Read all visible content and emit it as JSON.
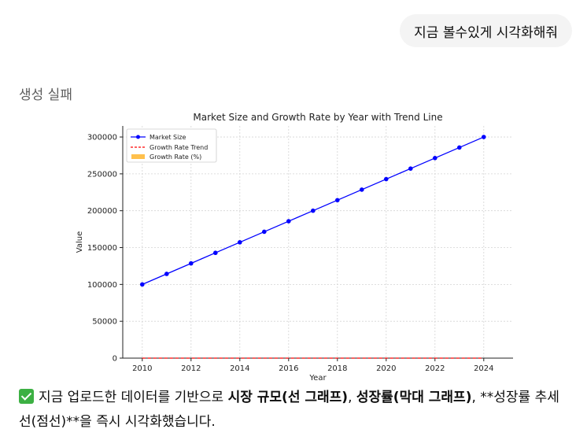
{
  "chat": {
    "user_message": "지금 볼수있게 시각화해줘",
    "generation_status": "생성 실패",
    "response": {
      "intro": "지금 업로드한 데이터를 기반으로 ",
      "bold1": "시장 규모(선 그래프)",
      "sep1": ", ",
      "bold2": "성장률(막대 그래프)",
      "rest": ", **성장률 추세선(점선)**을 즉시 시각화했습니다."
    }
  },
  "colors": {
    "market_size": "#0000ff",
    "growth_trend": "#ff0000",
    "growth_rate": "#ffa500"
  },
  "chart_data": {
    "type": "line",
    "title": "Market Size and Growth Rate by Year with Trend Line",
    "xlabel": "Year",
    "ylabel": "Value",
    "x": [
      2010,
      2011,
      2012,
      2013,
      2014,
      2015,
      2016,
      2017,
      2018,
      2019,
      2020,
      2021,
      2022,
      2023,
      2024
    ],
    "xticks": [
      2010,
      2012,
      2014,
      2016,
      2018,
      2020,
      2022,
      2024
    ],
    "xlim": [
      2009.2,
      2025.2
    ],
    "ylim": [
      0,
      315000
    ],
    "yticks": [
      0,
      50000,
      100000,
      150000,
      200000,
      250000,
      300000
    ],
    "grid": true,
    "legend_position": "top-left",
    "series": [
      {
        "name": "Market Size",
        "style": "line-marker",
        "values": [
          100000,
          114286,
          128571,
          142857,
          157143,
          171429,
          185714,
          200000,
          214286,
          228571,
          242857,
          257143,
          271429,
          285714,
          300000
        ]
      },
      {
        "name": "Growth Rate Trend",
        "style": "dashed",
        "values": [
          0,
          0,
          0,
          0,
          0,
          0,
          0,
          0,
          0,
          0,
          0,
          0,
          0,
          0,
          0
        ]
      },
      {
        "name": "Growth Rate (%)",
        "style": "bar",
        "values": [
          0,
          0,
          0,
          0,
          0,
          0,
          0,
          0,
          0,
          0,
          0,
          0,
          0,
          0,
          0
        ]
      }
    ]
  }
}
